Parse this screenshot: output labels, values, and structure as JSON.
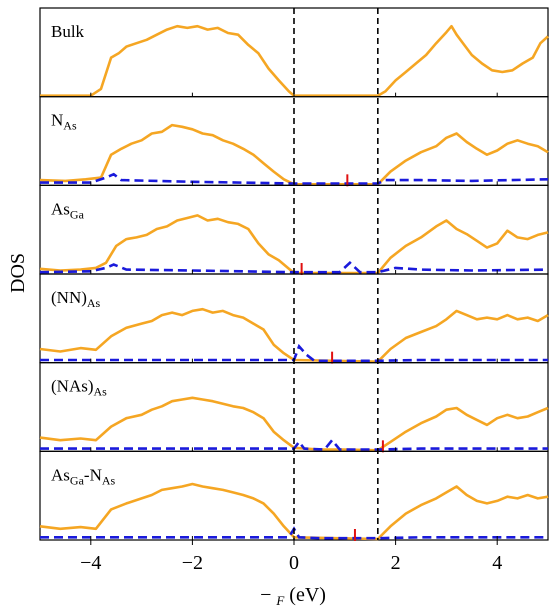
{
  "chart_data": {
    "type": "line",
    "ylabel": "DOS",
    "xlabel_main": "− ",
    "xlabel_sub": "F",
    "xlabel_unit": " (eV)",
    "xlim": [
      -5,
      5
    ],
    "x_ticks": [
      -4,
      -2,
      0,
      2,
      4
    ],
    "x_tick_labels": [
      "−4",
      "−2",
      "0",
      "2",
      "4"
    ],
    "band_edges_ev": [
      0,
      1.65
    ],
    "colors": {
      "host": "#f5a623",
      "impurity": "#1a1adb",
      "fermi_marker": "#e01010",
      "edges": "#000000"
    },
    "panels": [
      {
        "label_base": "Bulk",
        "label_sub": "",
        "label_tail": "",
        "label_sub2": "",
        "fermi_marker": null,
        "host_x": [
          -5,
          -4.6,
          -4.2,
          -4.0,
          -3.8,
          -3.6,
          -3.45,
          -3.3,
          -3.1,
          -2.9,
          -2.7,
          -2.5,
          -2.3,
          -2.1,
          -1.9,
          -1.7,
          -1.5,
          -1.3,
          -1.1,
          -0.9,
          -0.7,
          -0.5,
          -0.3,
          -0.1,
          0,
          1.65,
          1.8,
          2.0,
          2.2,
          2.4,
          2.6,
          2.8,
          3.0,
          3.1,
          3.2,
          3.35,
          3.5,
          3.7,
          3.9,
          4.1,
          4.3,
          4.5,
          4.7,
          4.85,
          5.0
        ],
        "host_y": [
          0,
          0,
          0,
          0,
          0.08,
          0.45,
          0.5,
          0.58,
          0.62,
          0.66,
          0.72,
          0.78,
          0.82,
          0.8,
          0.82,
          0.78,
          0.8,
          0.74,
          0.72,
          0.6,
          0.5,
          0.32,
          0.18,
          0.05,
          0,
          0,
          0.05,
          0.18,
          0.28,
          0.38,
          0.48,
          0.62,
          0.75,
          0.82,
          0.72,
          0.6,
          0.48,
          0.38,
          0.3,
          0.28,
          0.3,
          0.38,
          0.45,
          0.62,
          0.7
        ],
        "imp_x": [],
        "imp_y": []
      },
      {
        "label_base": "N",
        "label_sub": "As",
        "label_tail": "",
        "label_sub2": "",
        "fermi_marker": 1.05,
        "host_x": [
          -5,
          -4.5,
          -4.1,
          -3.8,
          -3.6,
          -3.4,
          -3.2,
          -3.0,
          -2.8,
          -2.6,
          -2.4,
          -2.2,
          -2.0,
          -1.8,
          -1.6,
          -1.4,
          -1.2,
          -1.0,
          -0.8,
          -0.6,
          -0.4,
          -0.2,
          0,
          1.65,
          1.9,
          2.2,
          2.5,
          2.8,
          3.0,
          3.2,
          3.4,
          3.6,
          3.8,
          4.0,
          4.2,
          4.4,
          4.6,
          4.8,
          5.0
        ],
        "host_y": [
          0.05,
          0.04,
          0.06,
          0.08,
          0.35,
          0.42,
          0.48,
          0.52,
          0.6,
          0.62,
          0.7,
          0.68,
          0.65,
          0.6,
          0.58,
          0.52,
          0.48,
          0.42,
          0.35,
          0.25,
          0.15,
          0.06,
          0,
          0,
          0.15,
          0.28,
          0.38,
          0.45,
          0.55,
          0.6,
          0.5,
          0.42,
          0.35,
          0.4,
          0.48,
          0.52,
          0.48,
          0.45,
          0.38
        ],
        "imp_x": [
          -5,
          -4.0,
          -3.7,
          -3.55,
          -3.4,
          -2.0,
          0,
          1.65,
          1.8,
          2.5,
          3.5,
          5.0
        ],
        "imp_y": [
          0.02,
          0.02,
          0.08,
          0.12,
          0.05,
          0.03,
          0.01,
          0.01,
          0.05,
          0.05,
          0.04,
          0.06
        ]
      },
      {
        "label_base": "As",
        "label_sub": "Ga",
        "label_tail": "",
        "label_sub2": "",
        "fermi_marker": 0.15,
        "host_x": [
          -5,
          -4.6,
          -4.2,
          -3.9,
          -3.7,
          -3.5,
          -3.3,
          -3.1,
          -2.9,
          -2.7,
          -2.5,
          -2.3,
          -2.1,
          -1.9,
          -1.7,
          -1.5,
          -1.3,
          -1.1,
          -0.9,
          -0.7,
          -0.5,
          -0.3,
          -0.1,
          0,
          1.65,
          1.9,
          2.2,
          2.5,
          2.8,
          3.0,
          3.2,
          3.4,
          3.6,
          3.8,
          4.0,
          4.2,
          4.4,
          4.6,
          4.8,
          5.0
        ],
        "host_y": [
          0.05,
          0.03,
          0.04,
          0.06,
          0.12,
          0.32,
          0.4,
          0.42,
          0.45,
          0.52,
          0.55,
          0.62,
          0.65,
          0.68,
          0.62,
          0.64,
          0.6,
          0.58,
          0.52,
          0.35,
          0.22,
          0.15,
          0.05,
          0,
          0,
          0.18,
          0.32,
          0.42,
          0.55,
          0.62,
          0.52,
          0.46,
          0.38,
          0.3,
          0.35,
          0.5,
          0.42,
          0.4,
          0.45,
          0.48
        ],
        "imp_x": [
          -5,
          -4.0,
          -3.7,
          -3.55,
          -3.3,
          -2.0,
          0,
          0.9,
          1.1,
          1.3,
          1.65,
          2.0,
          2.5,
          3.5,
          5.0
        ],
        "imp_y": [
          0.01,
          0.02,
          0.06,
          0.1,
          0.04,
          0.03,
          0.01,
          0.01,
          0.12,
          0.01,
          0.01,
          0.06,
          0.04,
          0.03,
          0.04
        ],
        "label_note": ""
      },
      {
        "label_base": "(NN)",
        "label_sub": "As",
        "label_tail": "",
        "label_sub2": "",
        "fermi_marker": 0.75,
        "host_x": [
          -5,
          -4.6,
          -4.2,
          -3.9,
          -3.6,
          -3.3,
          -3.0,
          -2.8,
          -2.6,
          -2.4,
          -2.2,
          -2.0,
          -1.8,
          -1.6,
          -1.4,
          -1.2,
          -1.0,
          -0.8,
          -0.6,
          -0.4,
          -0.2,
          0,
          1.65,
          1.9,
          2.2,
          2.5,
          2.8,
          3.0,
          3.2,
          3.4,
          3.6,
          3.8,
          4.0,
          4.2,
          4.4,
          4.6,
          4.8,
          5.0
        ],
        "host_y": [
          0.15,
          0.12,
          0.16,
          0.14,
          0.3,
          0.4,
          0.45,
          0.48,
          0.55,
          0.58,
          0.55,
          0.6,
          0.62,
          0.58,
          0.6,
          0.55,
          0.52,
          0.45,
          0.38,
          0.2,
          0.1,
          0.02,
          0,
          0.15,
          0.28,
          0.35,
          0.42,
          0.5,
          0.6,
          0.55,
          0.5,
          0.52,
          0.5,
          0.55,
          0.5,
          0.52,
          0.48,
          0.55
        ],
        "imp_x": [
          -5,
          -4.0,
          -3.0,
          -2.0,
          -0.5,
          0,
          0.1,
          0.25,
          0.4,
          0.6,
          1.65,
          2.5,
          3.5,
          5.0
        ],
        "imp_y": [
          0.02,
          0.02,
          0.02,
          0.02,
          0.02,
          0.02,
          0.18,
          0.08,
          0.01,
          0.01,
          0.01,
          0.02,
          0.02,
          0.02
        ]
      },
      {
        "label_base": "(NAs)",
        "label_sub": "As",
        "label_tail": "",
        "label_sub2": "",
        "fermi_marker": 1.75,
        "host_x": [
          -5,
          -4.6,
          -4.2,
          -3.9,
          -3.6,
          -3.3,
          -3.0,
          -2.8,
          -2.6,
          -2.4,
          -2.2,
          -2.0,
          -1.8,
          -1.6,
          -1.4,
          -1.2,
          -1.0,
          -0.8,
          -0.6,
          -0.4,
          -0.2,
          0,
          0.5,
          1.0,
          1.65,
          1.9,
          2.2,
          2.5,
          2.8,
          3.0,
          3.2,
          3.4,
          3.6,
          3.8,
          4.0,
          4.2,
          4.4,
          4.6,
          4.8,
          5.0
        ],
        "host_y": [
          0.15,
          0.12,
          0.14,
          0.12,
          0.28,
          0.38,
          0.42,
          0.48,
          0.52,
          0.58,
          0.6,
          0.62,
          0.6,
          0.58,
          0.55,
          0.52,
          0.5,
          0.45,
          0.38,
          0.22,
          0.12,
          0.03,
          0.01,
          0.01,
          0,
          0.1,
          0.22,
          0.32,
          0.4,
          0.48,
          0.5,
          0.42,
          0.36,
          0.3,
          0.38,
          0.42,
          0.38,
          0.4,
          0.45,
          0.5
        ],
        "imp_x": [
          -5,
          -4.0,
          -3.0,
          -2.0,
          -0.5,
          0,
          0.1,
          0.2,
          0.6,
          0.75,
          0.9,
          1.65,
          2.5,
          3.5,
          5.0
        ],
        "imp_y": [
          0.02,
          0.02,
          0.02,
          0.02,
          0.02,
          0.02,
          0.1,
          0.02,
          0.01,
          0.12,
          0.01,
          0.01,
          0.02,
          0.02,
          0.02
        ]
      },
      {
        "label_base": "As",
        "label_sub": "Ga",
        "label_tail": "-N",
        "label_sub2": "As",
        "fermi_marker": 1.2,
        "host_x": [
          -5,
          -4.6,
          -4.2,
          -3.9,
          -3.6,
          -3.3,
          -3.0,
          -2.8,
          -2.6,
          -2.4,
          -2.2,
          -2.0,
          -1.8,
          -1.6,
          -1.4,
          -1.2,
          -1.0,
          -0.8,
          -0.6,
          -0.4,
          -0.2,
          0,
          1.65,
          1.9,
          2.2,
          2.5,
          2.8,
          3.0,
          3.2,
          3.4,
          3.6,
          3.8,
          4.0,
          4.2,
          4.4,
          4.6,
          4.8,
          5.0
        ],
        "host_y": [
          0.15,
          0.12,
          0.14,
          0.12,
          0.35,
          0.42,
          0.48,
          0.52,
          0.58,
          0.6,
          0.62,
          0.65,
          0.62,
          0.6,
          0.58,
          0.55,
          0.52,
          0.48,
          0.42,
          0.3,
          0.15,
          0.02,
          0,
          0.15,
          0.3,
          0.4,
          0.48,
          0.55,
          0.62,
          0.52,
          0.45,
          0.42,
          0.45,
          0.5,
          0.48,
          0.52,
          0.48,
          0.5
        ],
        "imp_x": [
          -5,
          -4.0,
          -3.0,
          -2.0,
          -0.5,
          -0.1,
          0,
          0.1,
          0.5,
          1.65,
          2.5,
          3.5,
          5.0
        ],
        "imp_y": [
          0.02,
          0.02,
          0.02,
          0.02,
          0.02,
          0.02,
          0.12,
          0.02,
          0.01,
          0.01,
          0.02,
          0.02,
          0.02
        ]
      }
    ]
  }
}
